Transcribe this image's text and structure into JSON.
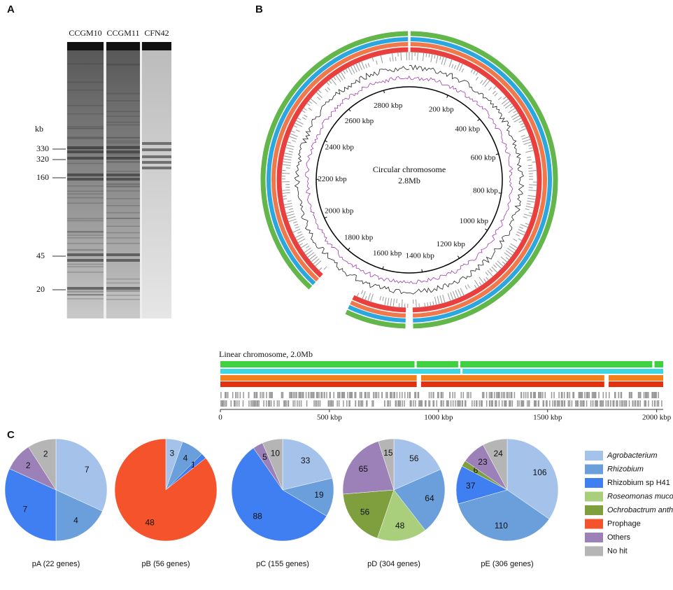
{
  "panel_a": {
    "label": "A",
    "lanes": [
      "CCGM10",
      "CCGM11",
      "CFN42"
    ],
    "unit": "kb",
    "markers": [
      330,
      320,
      160,
      45,
      20
    ]
  },
  "panel_b": {
    "label": "B",
    "circle_title": "Circular chromosome",
    "circle_size": "2.8Mb",
    "circular_lim": [
      0,
      2930
    ],
    "circular_ticks": [
      {
        "value": 200,
        "label": "200 kbp"
      },
      {
        "value": 400,
        "label": "400 kbp"
      },
      {
        "value": 600,
        "label": "600 kbp"
      },
      {
        "value": 800,
        "label": "800 kbp"
      },
      {
        "value": 1000,
        "label": "1000 kbp"
      },
      {
        "value": 1200,
        "label": "1200 kbp"
      },
      {
        "value": 1400,
        "label": "1400 kbp"
      },
      {
        "value": 1600,
        "label": "1600 kbp"
      },
      {
        "value": 1800,
        "label": "1800 kbp"
      },
      {
        "value": 2000,
        "label": "2000 kbp"
      },
      {
        "value": 2200,
        "label": "2200 kbp"
      },
      {
        "value": 2400,
        "label": "2400 kbp"
      },
      {
        "value": 2600,
        "label": "2600 kbp"
      },
      {
        "value": 2800,
        "label": "2800 kbp"
      }
    ],
    "linear_title": "Linear chromosome, 2.0Mb",
    "xlim": [
      0,
      2030
    ],
    "xticks": [
      0,
      {
        "value": 500,
        "label": "500 kbp"
      },
      {
        "value": 1000,
        "label": "1000 kbp"
      },
      {
        "value": 1500,
        "label": "1500 kbp"
      },
      {
        "value": 2000,
        "label": "2000 kbp"
      }
    ]
  },
  "panel_c": {
    "label": "C"
  },
  "legend": {
    "items": [
      {
        "name": "Agrobacterium",
        "color": "#a5c3ea",
        "italic": true
      },
      {
        "name": "Rhizobium",
        "color": "#6a9fdc",
        "italic": true
      },
      {
        "name": "Rhizobium sp H41",
        "color": "#3f7ff2",
        "italic": false
      },
      {
        "name": "Roseomonas mucosa",
        "color": "#a9cf7c",
        "italic": true
      },
      {
        "name": "Ochrobactrum anthropi",
        "color": "#7f9f3f",
        "italic": true
      },
      {
        "name": "Prophage",
        "color": "#f5532b",
        "italic": false
      },
      {
        "name": "Others",
        "color": "#9c80b8",
        "italic": false
      },
      {
        "name": "No hit",
        "color": "#b5b5b5",
        "italic": false
      }
    ]
  },
  "chart_data": [
    {
      "type": "pie",
      "title": "pA (22 genes)",
      "values": [
        7,
        4,
        7,
        2,
        2
      ],
      "colors": [
        "#a5c3ea",
        "#6a9fdc",
        "#3f7ff2",
        "#9c80b8",
        "#b5b5b5"
      ]
    },
    {
      "type": "pie",
      "title": "pB (56 genes)",
      "values": [
        3,
        4,
        1,
        48
      ],
      "colors": [
        "#a5c3ea",
        "#6a9fdc",
        "#3f7ff2",
        "#f5532b"
      ]
    },
    {
      "type": "pie",
      "title": "pC (155 genes)",
      "values": [
        33,
        19,
        88,
        5,
        10
      ],
      "colors": [
        "#a5c3ea",
        "#6a9fdc",
        "#3f7ff2",
        "#9c80b8",
        "#b5b5b5"
      ]
    },
    {
      "type": "pie",
      "title": "pD (304 genes)",
      "values": [
        56,
        64,
        48,
        56,
        65,
        15
      ],
      "colors": [
        "#a5c3ea",
        "#6a9fdc",
        "#a9cf7c",
        "#7f9f3f",
        "#9c80b8",
        "#b5b5b5"
      ]
    },
    {
      "type": "pie",
      "title": "pE (306 genes)",
      "values": [
        106,
        110,
        37,
        6,
        23,
        24
      ],
      "colors": [
        "#a5c3ea",
        "#6a9fdc",
        "#3f7ff2",
        "#7f9f3f",
        "#9c80b8",
        "#b5b5b5"
      ]
    }
  ]
}
